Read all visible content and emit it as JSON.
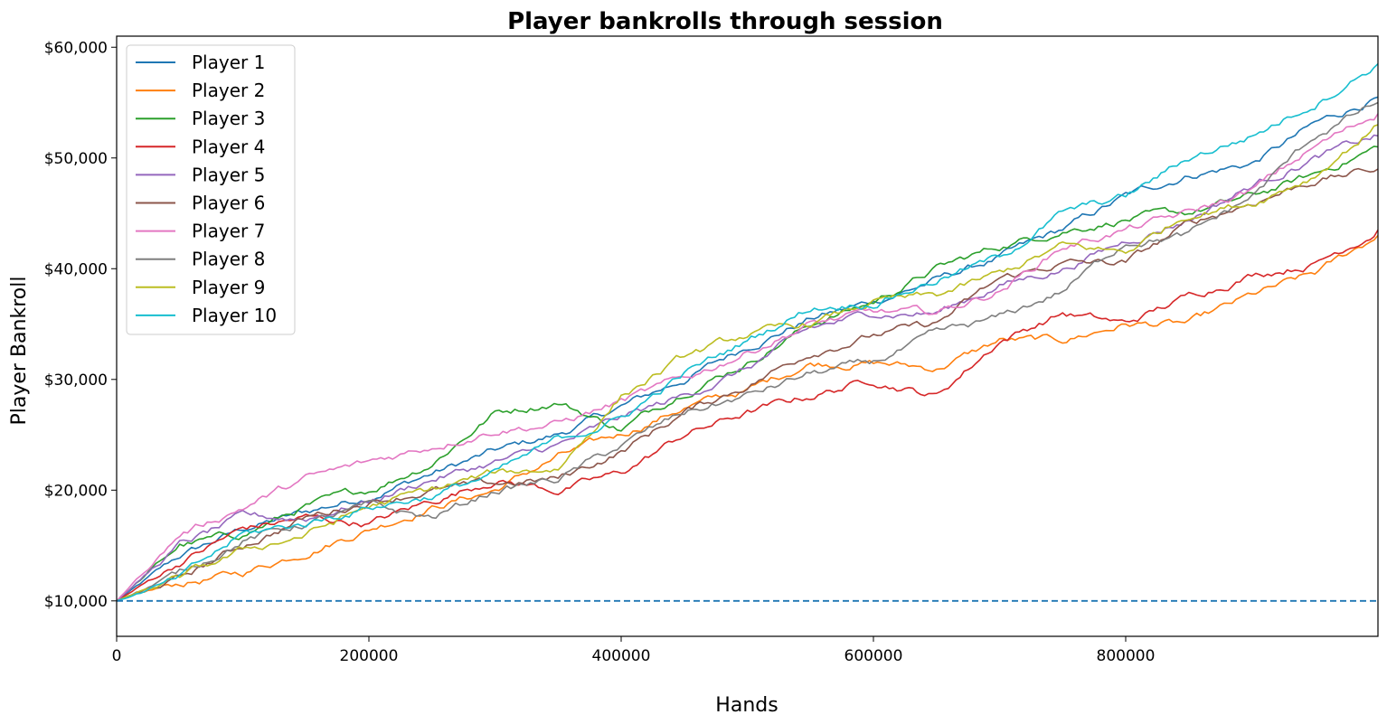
{
  "chart_data": {
    "type": "line",
    "title": "Player bankrolls through session",
    "xlabel": "Hands",
    "ylabel": "Player Bankroll",
    "xlim": [
      0,
      1000000
    ],
    "ylim": [
      6800,
      61000
    ],
    "x_ticks": [
      0,
      200000,
      400000,
      600000,
      800000
    ],
    "x_tick_labels": [
      "0",
      "200000",
      "400000",
      "600000",
      "800000"
    ],
    "y_ticks": [
      10000,
      20000,
      30000,
      40000,
      50000,
      60000
    ],
    "y_tick_labels": [
      "$10,000",
      "$20,000",
      "$30,000",
      "$40,000",
      "$50,000",
      "$60,000"
    ],
    "grid": false,
    "legend_position": "top-left",
    "reference_line": {
      "y": 10000,
      "style": "dashed",
      "color": "#1f77b4"
    },
    "x": [
      0,
      50000,
      100000,
      150000,
      200000,
      250000,
      300000,
      350000,
      400000,
      450000,
      500000,
      550000,
      600000,
      650000,
      700000,
      750000,
      800000,
      850000,
      900000,
      950000,
      1000000
    ],
    "series": [
      {
        "name": "Player 1",
        "color": "#1f77b4",
        "values": [
          10000,
          14000,
          16500,
          18000,
          19500,
          21500,
          23500,
          25000,
          27500,
          30000,
          33000,
          35500,
          37000,
          39000,
          41000,
          43500,
          46500,
          48500,
          49500,
          53000,
          55500
        ]
      },
      {
        "name": "Player 2",
        "color": "#ff7f0e",
        "values": [
          10000,
          11500,
          12500,
          14500,
          16500,
          18500,
          20000,
          23000,
          25000,
          27500,
          29000,
          31500,
          31500,
          31000,
          33500,
          33500,
          35000,
          35000,
          37500,
          39500,
          43000
        ]
      },
      {
        "name": "Player 3",
        "color": "#2ca02c",
        "values": [
          10000,
          15000,
          16000,
          18500,
          20000,
          22500,
          27000,
          28000,
          25500,
          29000,
          31500,
          35000,
          37000,
          40000,
          42000,
          43500,
          44500,
          45000,
          46500,
          48500,
          51000
        ]
      },
      {
        "name": "Player 4",
        "color": "#d62728",
        "values": [
          10000,
          13500,
          16500,
          17500,
          17000,
          19000,
          21000,
          20000,
          21500,
          25000,
          27000,
          28500,
          30000,
          28500,
          33500,
          36000,
          35000,
          37500,
          39500,
          40500,
          43500
        ]
      },
      {
        "name": "Player 5",
        "color": "#9467bd",
        "values": [
          10000,
          15000,
          17500,
          17500,
          19000,
          21000,
          22500,
          24000,
          26500,
          28500,
          31000,
          34500,
          36000,
          36000,
          38500,
          40000,
          42500,
          44500,
          47500,
          50000,
          52000
        ]
      },
      {
        "name": "Player 6",
        "color": "#8c564b",
        "values": [
          10000,
          12000,
          15000,
          17500,
          19000,
          20000,
          20500,
          21000,
          23500,
          27000,
          29500,
          32500,
          34000,
          35000,
          39000,
          40500,
          40500,
          44000,
          46000,
          48000,
          49000
        ]
      },
      {
        "name": "Player 7",
        "color": "#e377c2",
        "values": [
          10000,
          16000,
          18500,
          21000,
          22500,
          24000,
          25500,
          26000,
          28000,
          30000,
          32500,
          35000,
          36000,
          36000,
          38000,
          42000,
          43500,
          45000,
          47000,
          51000,
          54000
        ]
      },
      {
        "name": "Player 8",
        "color": "#7f7f7f",
        "values": [
          10000,
          12500,
          15500,
          17000,
          18500,
          17500,
          20000,
          21000,
          24000,
          27000,
          28500,
          30500,
          31500,
          34000,
          35500,
          38000,
          42500,
          43000,
          46500,
          52000,
          55000
        ]
      },
      {
        "name": "Player 9",
        "color": "#bcbd22",
        "values": [
          10000,
          12000,
          14500,
          16000,
          18500,
          20000,
          21500,
          22000,
          28500,
          32000,
          34000,
          35000,
          37000,
          37500,
          39500,
          42000,
          41500,
          45000,
          46000,
          48500,
          53000
        ]
      },
      {
        "name": "Player 10",
        "color": "#17becf",
        "values": [
          10000,
          12000,
          16000,
          17000,
          18500,
          19500,
          21500,
          24500,
          26500,
          30500,
          33500,
          36500,
          37000,
          39000,
          41000,
          45000,
          46500,
          50000,
          52000,
          55000,
          58500
        ]
      }
    ]
  }
}
